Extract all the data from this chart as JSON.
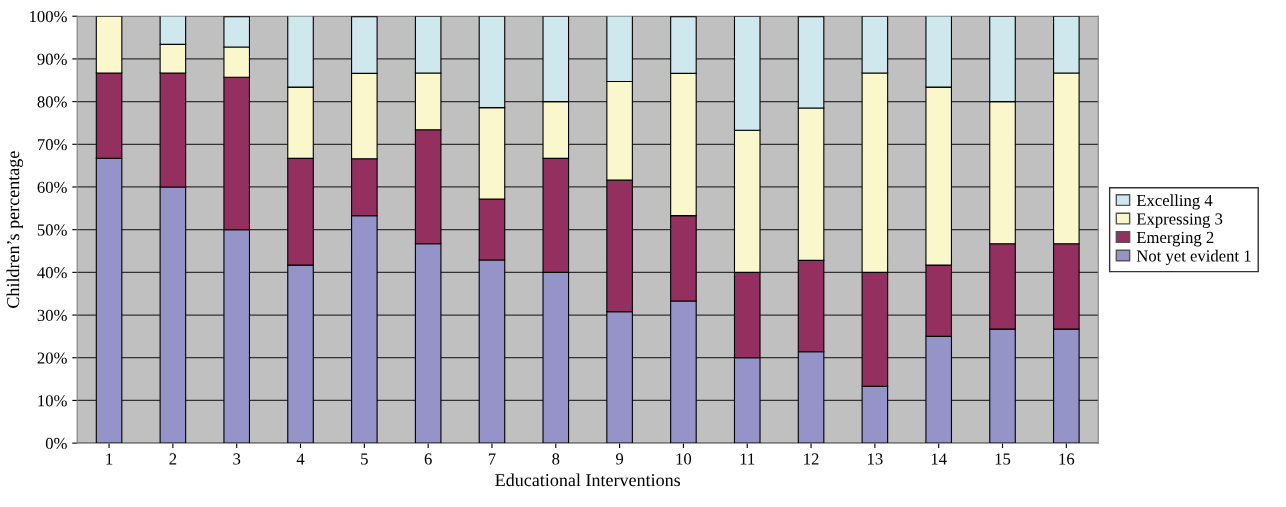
{
  "chart_data": {
    "type": "bar",
    "stacked": true,
    "xlabel": "Educational Interventions",
    "ylabel": "Children’s percentage",
    "categories": [
      "1",
      "2",
      "3",
      "4",
      "5",
      "6",
      "7",
      "8",
      "9",
      "10",
      "11",
      "12",
      "13",
      "14",
      "15",
      "16"
    ],
    "series": [
      {
        "name": "Not yet evident 1",
        "color": "#9494c8",
        "values": [
          66.7,
          60,
          50,
          41.7,
          53.3,
          46.7,
          42.9,
          40,
          30.8,
          33.3,
          20,
          21.4,
          13.3,
          25,
          26.7,
          26.7
        ]
      },
      {
        "name": "Emerging 2",
        "color": "#93305f",
        "values": [
          20,
          26.7,
          35.7,
          25,
          13.3,
          26.7,
          14.3,
          26.7,
          30.8,
          20,
          20,
          21.4,
          26.7,
          16.7,
          20,
          20
        ]
      },
      {
        "name": "Expressing 3",
        "color": "#f9f7cb",
        "values": [
          13.3,
          6.7,
          7.1,
          16.7,
          20,
          13.3,
          21.4,
          13.3,
          23.1,
          33.3,
          33.3,
          35.7,
          46.7,
          41.7,
          33.3,
          40
        ]
      },
      {
        "name": "Excelling 4",
        "color": "#cfe8ee",
        "values": [
          null,
          6.7,
          7.1,
          16.7,
          13.3,
          13.3,
          21.4,
          20,
          15.4,
          13.3,
          26.7,
          21.4,
          13.3,
          16.7,
          20,
          13.3
        ]
      }
    ],
    "ylim": [
      0,
      100
    ],
    "yticks": [
      {
        "value": 0,
        "label": "0%"
      },
      {
        "value": 10,
        "label": "10%"
      },
      {
        "value": 20,
        "label": "20%"
      },
      {
        "value": 30,
        "label": "30%"
      },
      {
        "value": 40,
        "label": "40%"
      },
      {
        "value": 50,
        "label": "50%"
      },
      {
        "value": 60,
        "label": "60%"
      },
      {
        "value": 70,
        "label": "70%"
      },
      {
        "value": 80,
        "label": "80%"
      },
      {
        "value": 90,
        "label": "90%"
      },
      {
        "value": 100,
        "label": "100%"
      }
    ],
    "grid": "y",
    "legend": "right"
  }
}
